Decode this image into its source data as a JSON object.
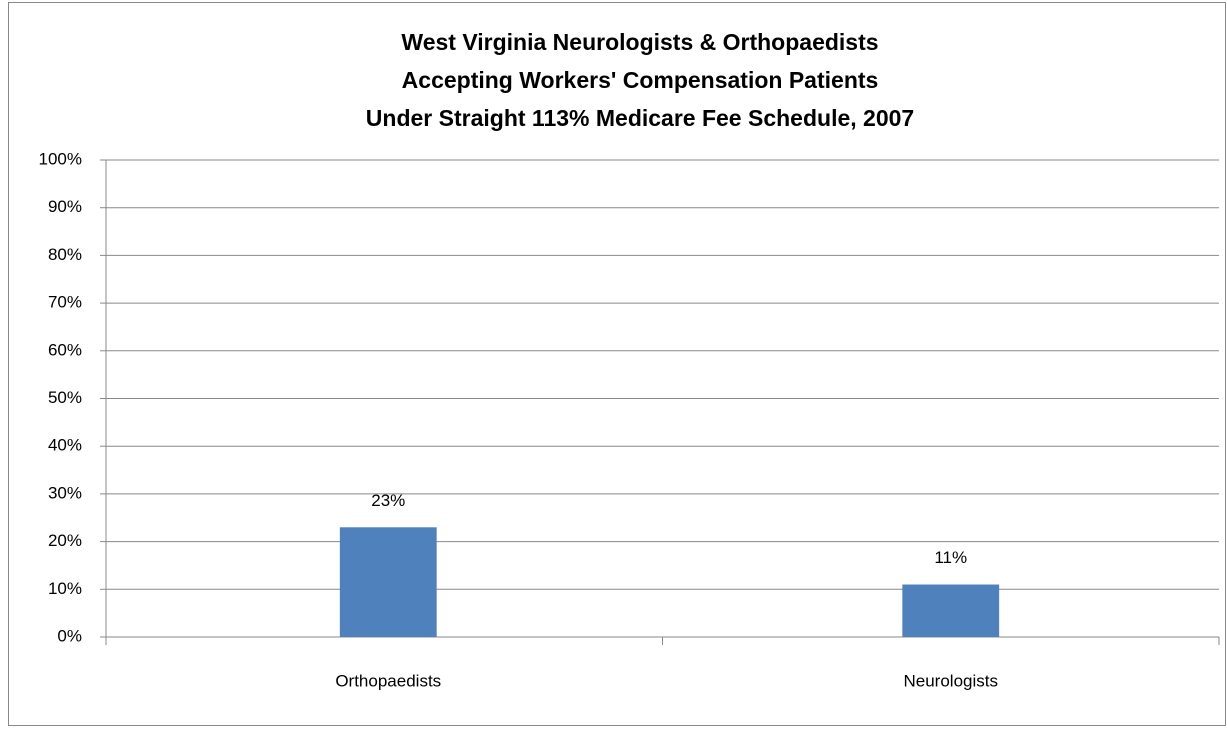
{
  "chart_data": {
    "type": "bar",
    "title": [
      "West Virginia Neurologists & Orthopaedists",
      "Accepting Workers' Compensation Patients",
      "Under Straight 113% Medicare Fee Schedule, 2007"
    ],
    "categories": [
      "Orthopaedists",
      "Neurologists"
    ],
    "values": [
      23,
      11
    ],
    "value_labels": [
      "23%",
      "11%"
    ],
    "color": "#4f81bd",
    "ylim": [
      0,
      100
    ],
    "yticks": [
      {
        "value": 0,
        "label": "0%"
      },
      {
        "value": 10,
        "label": "10%"
      },
      {
        "value": 20,
        "label": "20%"
      },
      {
        "value": 30,
        "label": "30%"
      },
      {
        "value": 40,
        "label": "40%"
      },
      {
        "value": 50,
        "label": "50%"
      },
      {
        "value": 60,
        "label": "60%"
      },
      {
        "value": 70,
        "label": "70%"
      },
      {
        "value": 80,
        "label": "80%"
      },
      {
        "value": 90,
        "label": "90%"
      },
      {
        "value": 100,
        "label": "100%"
      }
    ],
    "grid": true
  }
}
